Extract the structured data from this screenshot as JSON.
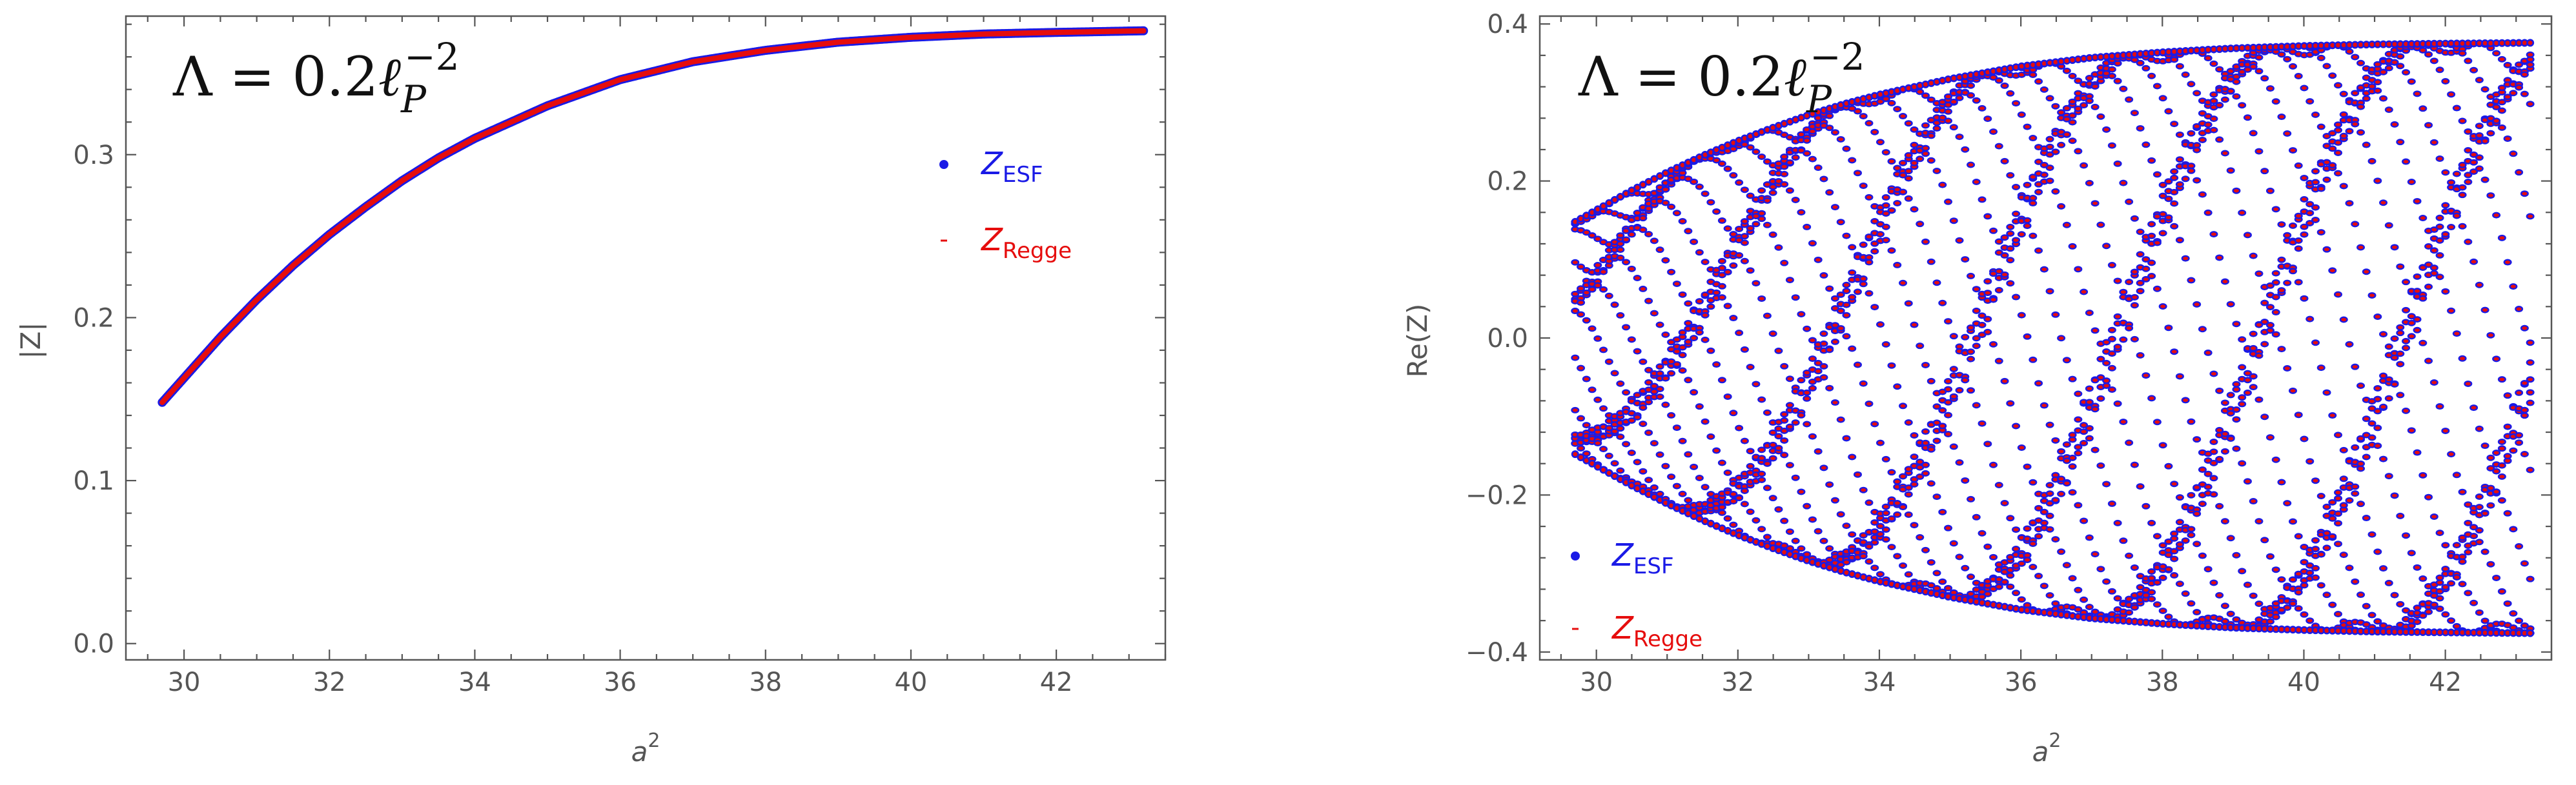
{
  "chart_data": [
    {
      "type": "scatter",
      "panel": "left",
      "title": "",
      "xlabel_base": "a",
      "xlabel_sup": "2",
      "ylabel": "|Z|",
      "xlim": [
        29.2,
        43.5
      ],
      "ylim": [
        -0.01,
        0.385
      ],
      "xticks": [
        30,
        32,
        34,
        36,
        38,
        40,
        42
      ],
      "xtick_labels": [
        "30",
        "32",
        "34",
        "36",
        "38",
        "40",
        "42"
      ],
      "yticks": [
        0.0,
        0.1,
        0.2,
        0.3
      ],
      "ytick_labels": [
        "0.0",
        "0.1",
        "0.2",
        "0.3"
      ],
      "annotation": {
        "lhs": "Λ = 0.2",
        "ell": "ℓ",
        "sub": "P",
        "sup": "−2"
      },
      "legend": [
        {
          "name": "Z",
          "sub": "ESF",
          "color": "#1a1ae6",
          "marker": "dot"
        },
        {
          "name": "Z",
          "sub": "Regge",
          "color": "#e60d0d",
          "marker": "dash"
        }
      ],
      "legend_placement": "right-middle",
      "series": [
        {
          "name": "Z_ESF",
          "color": "#1a1ae6",
          "x": [
            29.7,
            30.0,
            30.5,
            31.0,
            31.5,
            32.0,
            32.5,
            33.0,
            33.5,
            34.0,
            35.0,
            36.0,
            37.0,
            38.0,
            39.0,
            40.0,
            41.0,
            42.0,
            43.2
          ],
          "y": [
            0.148,
            0.163,
            0.188,
            0.211,
            0.232,
            0.251,
            0.268,
            0.284,
            0.298,
            0.31,
            0.33,
            0.346,
            0.357,
            0.364,
            0.369,
            0.372,
            0.374,
            0.375,
            0.376
          ]
        },
        {
          "name": "Z_Regge",
          "color": "#e60d0d",
          "x": [
            29.7,
            30.0,
            30.5,
            31.0,
            31.5,
            32.0,
            32.5,
            33.0,
            33.5,
            34.0,
            35.0,
            36.0,
            37.0,
            38.0,
            39.0,
            40.0,
            41.0,
            42.0,
            43.2
          ],
          "y": [
            0.148,
            0.163,
            0.188,
            0.211,
            0.232,
            0.251,
            0.268,
            0.284,
            0.298,
            0.31,
            0.33,
            0.346,
            0.357,
            0.364,
            0.369,
            0.372,
            0.374,
            0.375,
            0.376
          ]
        }
      ]
    },
    {
      "type": "scatter",
      "panel": "right",
      "title": "",
      "xlabel_base": "a",
      "xlabel_sup": "2",
      "ylabel": "Re(Z)",
      "xlim": [
        29.2,
        43.5
      ],
      "ylim": [
        -0.41,
        0.41
      ],
      "xticks": [
        30,
        32,
        34,
        36,
        38,
        40,
        42
      ],
      "xtick_labels": [
        "30",
        "32",
        "34",
        "36",
        "38",
        "40",
        "42"
      ],
      "yticks": [
        -0.4,
        -0.2,
        0.0,
        0.2,
        0.4
      ],
      "ytick_labels": [
        "−0.4",
        "−0.2",
        "0.0",
        "0.2",
        "0.4"
      ],
      "annotation": {
        "lhs": "Λ = 0.2",
        "ell": "ℓ",
        "sub": "P",
        "sup": "−2"
      },
      "legend": [
        {
          "name": "Z",
          "sub": "ESF",
          "color": "#1a1ae6",
          "marker": "dot"
        },
        {
          "name": "Z",
          "sub": "Regge",
          "color": "#e60d0d",
          "marker": "dash"
        }
      ],
      "legend_placement": "bottom-left",
      "envelope": {
        "description": "Re(Z) oscillates within ±|Z|; upper/lower envelope equals |Z| from left panel",
        "x": [
          29.7,
          30.0,
          30.5,
          31.0,
          31.5,
          32.0,
          32.5,
          33.0,
          33.5,
          34.0,
          35.0,
          36.0,
          37.0,
          38.0,
          39.0,
          40.0,
          41.0,
          42.0,
          43.2
        ],
        "upper": [
          0.148,
          0.163,
          0.188,
          0.211,
          0.232,
          0.251,
          0.268,
          0.284,
          0.298,
          0.31,
          0.33,
          0.346,
          0.357,
          0.364,
          0.369,
          0.372,
          0.374,
          0.375,
          0.376
        ],
        "lower": [
          -0.148,
          -0.163,
          -0.188,
          -0.211,
          -0.232,
          -0.251,
          -0.268,
          -0.284,
          -0.298,
          -0.31,
          -0.33,
          -0.346,
          -0.357,
          -0.364,
          -0.369,
          -0.372,
          -0.374,
          -0.375,
          -0.376
        ]
      },
      "series": [
        {
          "name": "Z_ESF",
          "color": "#1a1ae6"
        },
        {
          "name": "Z_Regge",
          "color": "#e60d0d"
        }
      ],
      "sampling": {
        "x_start": 29.7,
        "x_end": 43.2,
        "n_columns": 170,
        "n_levels": 16
      }
    }
  ]
}
